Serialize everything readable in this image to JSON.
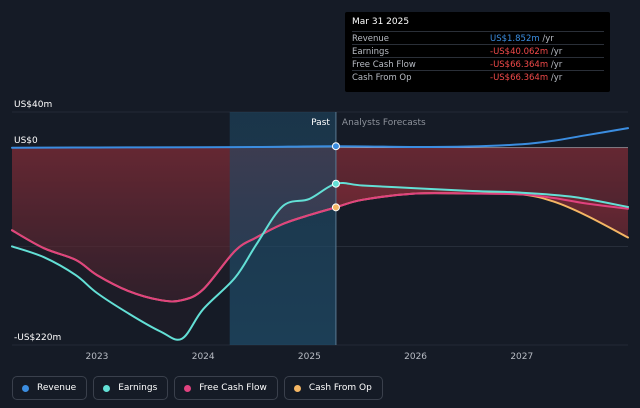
{
  "colors": {
    "revenue": "#3b8de0",
    "earnings": "#63e0d6",
    "free_cash_flow": "#e0427f",
    "cash_from_op": "#f4b664",
    "past_band": "#1d3a4f",
    "negative_fill": "#8a2d38"
  },
  "tooltip": {
    "date": "Mar 31 2025",
    "rows": [
      {
        "label": "Revenue",
        "value": "US$1.852m",
        "unit": "/yr",
        "color": "#3b8de0"
      },
      {
        "label": "Earnings",
        "value": "-US$40.062m",
        "unit": "/yr",
        "color": "#f24a4a"
      },
      {
        "label": "Free Cash Flow",
        "value": "-US$66.364m",
        "unit": "/yr",
        "color": "#f24a4a"
      },
      {
        "label": "Cash From Op",
        "value": "-US$66.364m",
        "unit": "/yr",
        "color": "#f24a4a"
      }
    ]
  },
  "legend": [
    {
      "label": "Revenue",
      "color": "#3b8de0"
    },
    {
      "label": "Earnings",
      "color": "#63e0d6"
    },
    {
      "label": "Free Cash Flow",
      "color": "#e0427f"
    },
    {
      "label": "Cash From Op",
      "color": "#f4b664"
    }
  ],
  "chart_data": {
    "type": "line",
    "title": "",
    "xlabel": "",
    "ylabel": "",
    "y_tick_labels": [
      {
        "value": 40,
        "label": "US$40m"
      },
      {
        "value": 0,
        "label": "US$0"
      },
      {
        "value": -220,
        "label": "-US$220m"
      }
    ],
    "ylim": [
      -220,
      40
    ],
    "xlim": [
      2022.2,
      2028.0
    ],
    "x_ticks": [
      2023,
      2024,
      2025,
      2026,
      2027
    ],
    "x_tick_labels": [
      "2023",
      "2024",
      "2025",
      "2026",
      "2027"
    ],
    "past_range": [
      2024.25,
      2025.25
    ],
    "divider_x": 2025.25,
    "past_label": "Past",
    "forecast_label": "Analysts Forecasts",
    "grid": true,
    "legend_position": "bottom-left",
    "series": [
      {
        "name": "Revenue",
        "key": "revenue",
        "x": [
          2022.2,
          2023.0,
          2024.0,
          2024.5,
          2025.25,
          2026.0,
          2026.5,
          2027.0,
          2027.3,
          2027.6,
          2028.0
        ],
        "y": [
          0.2,
          0.4,
          0.7,
          0.9,
          1.85,
          1.0,
          1.5,
          4.0,
          8.0,
          14.0,
          22.0
        ]
      },
      {
        "name": "Earnings",
        "key": "earnings",
        "x": [
          2022.2,
          2022.5,
          2022.8,
          2023.0,
          2023.3,
          2023.6,
          2023.8,
          2024.0,
          2024.3,
          2024.5,
          2024.75,
          2025.0,
          2025.25,
          2025.5,
          2026.0,
          2026.5,
          2027.0,
          2027.5,
          2028.0
        ],
        "y": [
          -110,
          -122,
          -142,
          -162,
          -185,
          -205,
          -213,
          -180,
          -145,
          -108,
          -65,
          -57,
          -40,
          -42,
          -45,
          -48,
          -50,
          -55,
          -66
        ]
      },
      {
        "name": "Free Cash Flow",
        "key": "free_cash_flow",
        "x": [
          2022.2,
          2022.5,
          2022.8,
          2023.0,
          2023.3,
          2023.6,
          2023.8,
          2024.0,
          2024.3,
          2024.5,
          2024.75,
          2025.0,
          2025.25,
          2025.5,
          2026.0,
          2026.5,
          2027.0,
          2027.3,
          2027.6,
          2028.0
        ],
        "y": [
          -92,
          -112,
          -125,
          -142,
          -160,
          -170,
          -170,
          -158,
          -115,
          -100,
          -85,
          -75,
          -66.4,
          -58,
          -51,
          -51,
          -52,
          -56,
          -62,
          -68
        ]
      },
      {
        "name": "Cash From Op",
        "key": "cash_from_op",
        "x": [
          2022.2,
          2022.5,
          2022.8,
          2023.0,
          2023.3,
          2023.6,
          2023.8,
          2024.0,
          2024.3,
          2024.5,
          2024.75,
          2025.0,
          2025.25,
          2025.5,
          2026.0,
          2026.5,
          2027.0,
          2027.3,
          2027.6,
          2028.0
        ],
        "y": [
          -92,
          -112,
          -125,
          -142,
          -160,
          -170,
          -170,
          -158,
          -115,
          -100,
          -85,
          -75,
          -66.4,
          -58,
          -51,
          -51,
          -52,
          -60,
          -75,
          -100
        ]
      }
    ]
  }
}
